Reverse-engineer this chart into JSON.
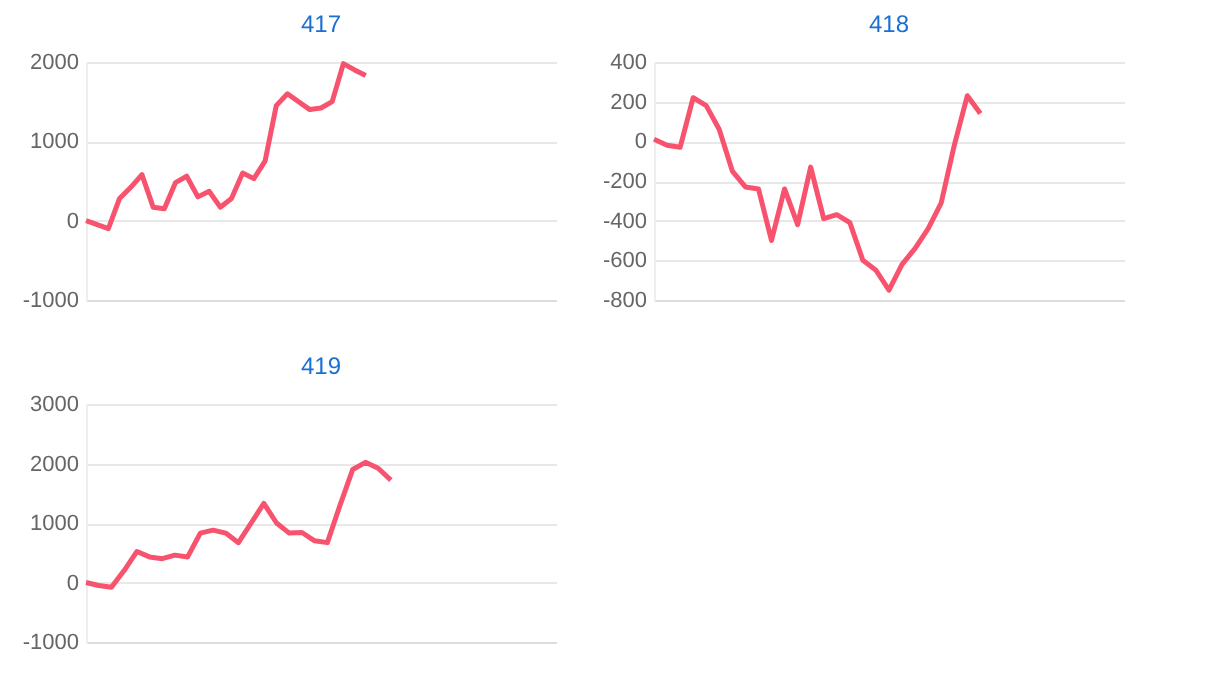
{
  "chart_data": [
    {
      "type": "line",
      "title": "417",
      "categories": [
        null,
        null,
        null,
        null,
        null,
        null,
        null,
        null,
        null,
        null,
        null,
        null,
        null,
        null,
        null,
        null,
        null,
        null,
        null,
        null,
        null,
        null,
        null,
        null,
        null,
        null,
        null,
        null,
        null,
        null,
        null,
        null,
        null,
        null,
        null,
        null,
        null,
        null,
        null,
        null,
        null,
        null,
        null
      ],
      "series": [
        {
          "color": "#f7536f",
          "values": [
            0,
            -50,
            -100,
            280,
            420,
            580,
            170,
            150,
            480,
            560,
            300,
            370,
            170,
            280,
            600,
            530,
            750,
            1450,
            1600,
            1500,
            1400,
            1420,
            1500,
            1980,
            1900,
            1830,
            null,
            null,
            null,
            null,
            null,
            null,
            null,
            null,
            null,
            null,
            null,
            null,
            null,
            null,
            null,
            null,
            null
          ]
        }
      ],
      "ylim": [
        -1000,
        2000
      ],
      "yticks": [
        -1000,
        0,
        1000,
        2000
      ],
      "grid": "y",
      "tick_labels": "y"
    },
    {
      "type": "line",
      "title": "418",
      "categories": [
        null,
        null,
        null,
        null,
        null,
        null,
        null,
        null,
        null,
        null,
        null,
        null,
        null,
        null,
        null,
        null,
        null,
        null,
        null,
        null,
        null,
        null,
        null,
        null,
        null,
        null,
        null,
        null,
        null,
        null,
        null,
        null,
        null,
        null,
        null,
        null,
        null
      ],
      "series": [
        {
          "color": "#f7536f",
          "values": [
            10,
            -20,
            -30,
            220,
            180,
            60,
            -150,
            -230,
            -240,
            -500,
            -240,
            -420,
            -130,
            -390,
            -370,
            -410,
            -600,
            -650,
            -750,
            -620,
            -540,
            -440,
            -310,
            -20,
            230,
            140,
            null,
            null,
            null,
            null,
            null,
            null,
            null,
            null,
            null,
            null,
            null
          ]
        }
      ],
      "ylim": [
        -800,
        400
      ],
      "yticks": [
        -800,
        -600,
        -400,
        -200,
        0,
        200,
        400
      ],
      "grid": "y",
      "tick_labels": "y"
    },
    {
      "type": "line",
      "title": "419",
      "categories": [
        null,
        null,
        null,
        null,
        null,
        null,
        null,
        null,
        null,
        null,
        null,
        null,
        null,
        null,
        null,
        null,
        null,
        null,
        null,
        null,
        null,
        null,
        null,
        null,
        null,
        null,
        null,
        null,
        null,
        null,
        null,
        null,
        null,
        null,
        null,
        null,
        null,
        null
      ],
      "series": [
        {
          "color": "#f7536f",
          "values": [
            0,
            -50,
            -80,
            200,
            520,
            430,
            400,
            460,
            430,
            830,
            880,
            830,
            670,
            1000,
            1330,
            1000,
            830,
            840,
            700,
            670,
            1300,
            1900,
            2020,
            1920,
            1720,
            null,
            null,
            null,
            null,
            null,
            null,
            null,
            null,
            null,
            null,
            null,
            null,
            null
          ]
        }
      ],
      "ylim": [
        -1000,
        3000
      ],
      "yticks": [
        -1000,
        0,
        1000,
        2000,
        3000
      ],
      "grid": "y",
      "tick_labels": "y"
    }
  ]
}
